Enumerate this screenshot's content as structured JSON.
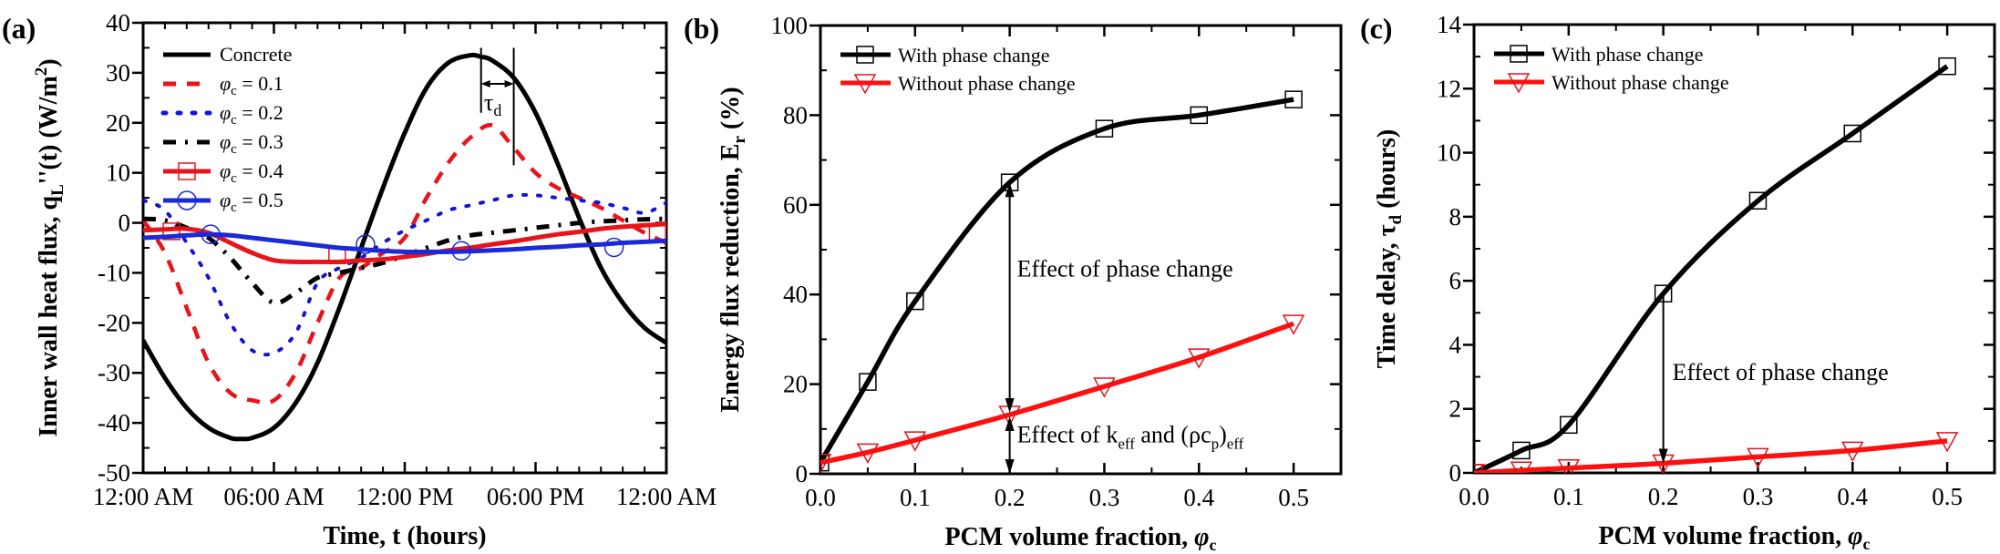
{
  "chart_data": [
    {
      "id": "a",
      "panel_label": "(a)",
      "type": "line",
      "title": "",
      "xlabel": "Time, t (hours)",
      "ylabel": "Inner wall heat flux, q_L''(t) (W/m^2)",
      "ylabel_parts": {
        "main": "Inner wall heat flux, q",
        "sub": "L",
        "tail": "''(t) (W/m",
        "sup": "2",
        "end": ")"
      },
      "xlim": [
        0,
        24
      ],
      "ylim": [
        -50,
        40
      ],
      "x_ticks": [
        0,
        6,
        12,
        18,
        24
      ],
      "x_tick_labels": [
        "12:00 AM",
        "06:00 AM",
        "12:00 PM",
        "06:00 PM",
        "12:00 AM"
      ],
      "y_ticks": [
        -50,
        -40,
        -30,
        -20,
        -10,
        0,
        10,
        20,
        30,
        40
      ],
      "y_tick_labels": [
        "-50",
        "-40",
        "-30",
        "-20",
        "-10",
        "0",
        "10",
        "20",
        "30",
        "40"
      ],
      "legend_position": "top-left",
      "annotation": {
        "text": "τ",
        "sub": "d",
        "from_x": 15.5,
        "to_x": 17.0
      },
      "series": [
        {
          "name": "Concrete",
          "color": "#000000",
          "style": "solid",
          "marker": "none",
          "x": [
            0,
            1,
            2,
            3,
            4,
            4.5,
            5,
            6,
            7,
            8,
            9,
            10,
            11,
            12,
            13,
            14,
            15,
            15.5,
            16,
            17,
            18,
            19,
            20,
            21,
            22,
            23,
            24
          ],
          "y": [
            -23.5,
            -31,
            -37,
            -41,
            -43,
            -43.2,
            -43,
            -41,
            -36,
            -28,
            -17,
            -5,
            7,
            18,
            27,
            32,
            33.5,
            33.2,
            32.5,
            29,
            22,
            12,
            1,
            -9,
            -16,
            -21,
            -24
          ]
        },
        {
          "name": "φc = 0.1",
          "color": "#e8141b",
          "style": "dashed",
          "marker": "none",
          "x": [
            0,
            1,
            2,
            3,
            4,
            5,
            6,
            7,
            8,
            9,
            10,
            11,
            12,
            13,
            14,
            15,
            16,
            17,
            18,
            19,
            20,
            21,
            22,
            23,
            24
          ],
          "y": [
            0.5,
            -6,
            -17,
            -28,
            -34,
            -35.5,
            -35.5,
            -30,
            -20,
            -11,
            -9,
            -6,
            -3,
            5,
            12,
            17,
            19.5,
            15,
            10,
            7,
            5,
            3,
            0.5,
            -2,
            -4
          ]
        },
        {
          "name": "φc = 0.2",
          "color": "#1414d2",
          "style": "dotted",
          "marker": "none",
          "x": [
            0,
            1,
            2,
            3,
            4,
            5,
            6,
            7,
            8,
            9,
            10,
            11,
            12,
            13,
            14,
            15,
            16,
            17,
            18,
            19,
            20,
            21,
            22,
            23,
            24
          ],
          "y": [
            4.5,
            2.5,
            -4,
            -11,
            -20,
            -25.5,
            -26,
            -22,
            -12,
            -9,
            -7,
            -4,
            -1.5,
            0.5,
            2.5,
            3.5,
            4.5,
            5.5,
            5.5,
            5,
            4.5,
            4,
            3,
            2,
            4
          ]
        },
        {
          "name": "φc = 0.3",
          "color": "#000000",
          "style": "dashdot",
          "marker": "none",
          "x": [
            0,
            1,
            2,
            3,
            4,
            5,
            6,
            7,
            8,
            9,
            10,
            11,
            12,
            13,
            14,
            15,
            16,
            17,
            18,
            19,
            20,
            21,
            22,
            23,
            24
          ],
          "y": [
            0.8,
            0.5,
            -1,
            -3,
            -7,
            -12,
            -16,
            -14,
            -11,
            -10,
            -9,
            -8,
            -6.5,
            -5,
            -3.5,
            -2.5,
            -2,
            -1.5,
            -1,
            -0.5,
            0,
            0.3,
            0.5,
            0.7,
            0.8
          ]
        },
        {
          "name": "φc = 0.4",
          "color": "#e8141b",
          "style": "solid",
          "marker": "square",
          "x": [
            0,
            1,
            2,
            3,
            4,
            5,
            6,
            7,
            8,
            9,
            10,
            11,
            12,
            13,
            14,
            15,
            16,
            17,
            18,
            19,
            20,
            21,
            22,
            23,
            24
          ],
          "y": [
            -1.5,
            -1.3,
            -1.2,
            -2,
            -4,
            -6,
            -7.5,
            -7.8,
            -7.8,
            -7.8,
            -7.5,
            -7.3,
            -6.8,
            -6.2,
            -5.5,
            -5,
            -4.3,
            -3.7,
            -3,
            -2.3,
            -1.8,
            -1.2,
            -0.8,
            -0.5,
            -0.2
          ]
        },
        {
          "name": "φc = 0.5",
          "color": "#1b2ad6",
          "style": "solid",
          "marker": "circle",
          "x": [
            0,
            1,
            2,
            3,
            4,
            5,
            6,
            7,
            8,
            9,
            10,
            11,
            12,
            13,
            14,
            15,
            16,
            17,
            18,
            19,
            20,
            21,
            22,
            23,
            24
          ],
          "y": [
            -3,
            -2.8,
            -2.5,
            -2.3,
            -2.5,
            -3,
            -3.5,
            -4,
            -4.5,
            -5,
            -5.3,
            -5.6,
            -5.8,
            -5.8,
            -5.8,
            -5.7,
            -5.5,
            -5.3,
            -5,
            -4.8,
            -4.5,
            -4.3,
            -4,
            -3.8,
            -3.6
          ]
        }
      ],
      "markers": {
        "φc = 0.4": {
          "x": [
            1.3,
            8.9,
            23.6
          ],
          "y": [
            -1.7,
            -6.5,
            -2.2
          ]
        },
        "φc = 0.5": {
          "x": [
            3.1,
            10.2,
            14.6,
            21.6
          ],
          "y": [
            -2.3,
            -4.3,
            -5.6,
            -4.9
          ]
        }
      }
    },
    {
      "id": "b",
      "panel_label": "(b)",
      "type": "line",
      "title": "",
      "xlabel": "PCM volume fraction, φc",
      "ylabel": "Energy flux reduction, E_r (%)",
      "ylabel_parts": {
        "main": "Energy flux reduction, E",
        "sub": "r",
        "end": " (%)"
      },
      "xlim": [
        0,
        0.55
      ],
      "ylim": [
        0,
        100
      ],
      "x_ticks": [
        0.0,
        0.1,
        0.2,
        0.3,
        0.4,
        0.5
      ],
      "x_tick_labels": [
        "0.0",
        "0.1",
        "0.2",
        "0.3",
        "0.4",
        "0.5"
      ],
      "y_ticks": [
        0,
        20,
        40,
        60,
        80,
        100
      ],
      "y_tick_labels": [
        "0",
        "20",
        "40",
        "60",
        "80",
        "100"
      ],
      "legend_position": "top-left",
      "series": [
        {
          "name": "With phase change",
          "color": "#000000",
          "marker": "square",
          "x": [
            0.0,
            0.05,
            0.1,
            0.2,
            0.3,
            0.4,
            0.5
          ],
          "y": [
            2.5,
            20.5,
            38.5,
            65,
            77,
            80,
            83.5
          ]
        },
        {
          "name": "Without phase change",
          "color": "#ff1010",
          "marker": "triangle-down",
          "x": [
            0.0,
            0.05,
            0.1,
            0.2,
            0.3,
            0.4,
            0.5
          ],
          "y": [
            2.5,
            4.8,
            7.5,
            13.2,
            19.5,
            26,
            33.5
          ]
        }
      ],
      "annotations": [
        {
          "text": "Effect of phase change",
          "color": "#000000",
          "arrow_x": 0.2,
          "from_y": 13.2,
          "to_y": 65
        },
        {
          "text": "Effect of k_eff and (ρc_p)_eff",
          "color": "#ff1010",
          "arrow_x": 0.2,
          "from_y": 13.2,
          "to_y": 0
        }
      ]
    },
    {
      "id": "c",
      "panel_label": "(c)",
      "type": "line",
      "title": "",
      "xlabel": "PCM volume fraction, φc",
      "ylabel": "Time delay, τ_d (hours)",
      "ylabel_parts": {
        "main": "Time delay, τ",
        "sub": "d",
        "end": " (hours)"
      },
      "xlim": [
        0,
        0.55
      ],
      "ylim": [
        0,
        14
      ],
      "x_ticks": [
        0.0,
        0.1,
        0.2,
        0.3,
        0.4,
        0.5
      ],
      "x_tick_labels": [
        "0.0",
        "0.1",
        "0.2",
        "0.3",
        "0.4",
        "0.5"
      ],
      "y_ticks": [
        0,
        2,
        4,
        6,
        8,
        10,
        12,
        14
      ],
      "y_tick_labels": [
        "0",
        "2",
        "4",
        "6",
        "8",
        "10",
        "12",
        "14"
      ],
      "legend_position": "top-left",
      "series": [
        {
          "name": "With phase change",
          "color": "#000000",
          "marker": "square",
          "x": [
            0.0,
            0.05,
            0.1,
            0.2,
            0.3,
            0.4,
            0.5
          ],
          "y": [
            0.0,
            0.7,
            1.5,
            5.6,
            8.5,
            10.6,
            12.7
          ]
        },
        {
          "name": "Without phase change",
          "color": "#ff1010",
          "marker": "triangle-down",
          "x": [
            0.0,
            0.05,
            0.1,
            0.2,
            0.3,
            0.4,
            0.5
          ],
          "y": [
            0.0,
            0.08,
            0.15,
            0.3,
            0.5,
            0.7,
            1.0
          ]
        }
      ],
      "annotations": [
        {
          "text": "Effect of phase change",
          "color": "#000000",
          "arrow_x": 0.2,
          "from_y": 5.6,
          "to_y": 0.3
        }
      ]
    }
  ]
}
